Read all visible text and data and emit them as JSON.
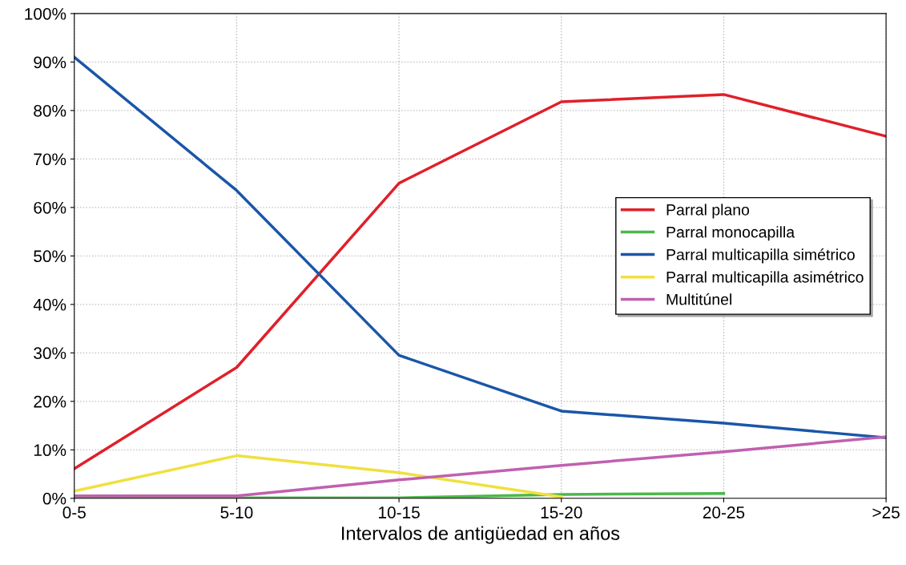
{
  "chart_data": {
    "type": "line",
    "xlabel": "Intervalos de antigüedad en años",
    "categories": [
      "0-5",
      "5-10",
      "10-15",
      "15-20",
      "20-25",
      ">25"
    ],
    "series": [
      {
        "name": "Parral plano",
        "color": "#e0202a",
        "values": [
          6.1,
          27,
          65,
          81.8,
          83.3,
          74.7
        ]
      },
      {
        "name": "Parral monocapilla",
        "color": "#4cb84a",
        "values": [
          0.1,
          0.1,
          0.1,
          0.8,
          1.0,
          null
        ]
      },
      {
        "name": "Parral multicapilla simétrico",
        "color": "#1a56a8",
        "values": [
          91,
          63.5,
          29.5,
          18,
          15.5,
          12.5
        ]
      },
      {
        "name": "Parral multicapilla asimétrico",
        "color": "#f0e040",
        "values": [
          1.5,
          8.8,
          5.3,
          0.3,
          null,
          null
        ]
      },
      {
        "name": "Multitúnel",
        "color": "#c060b0",
        "values": [
          0.5,
          0.5,
          3.8,
          6.8,
          9.6,
          12.7
        ]
      }
    ],
    "ylim": [
      0,
      100
    ],
    "yticks": [
      {
        "value": 0,
        "label": "0%"
      },
      {
        "value": 10,
        "label": "10%"
      },
      {
        "value": 20,
        "label": "20%"
      },
      {
        "value": 30,
        "label": "30%"
      },
      {
        "value": 40,
        "label": "40%"
      },
      {
        "value": 50,
        "label": "50%"
      },
      {
        "value": 60,
        "label": "60%"
      },
      {
        "value": 70,
        "label": "70%"
      },
      {
        "value": 80,
        "label": "80%"
      },
      {
        "value": 90,
        "label": "90%"
      },
      {
        "value": 100,
        "label": "100%"
      }
    ],
    "grid": true,
    "legend": "center right",
    "marker": "none",
    "line_style": "solid"
  }
}
